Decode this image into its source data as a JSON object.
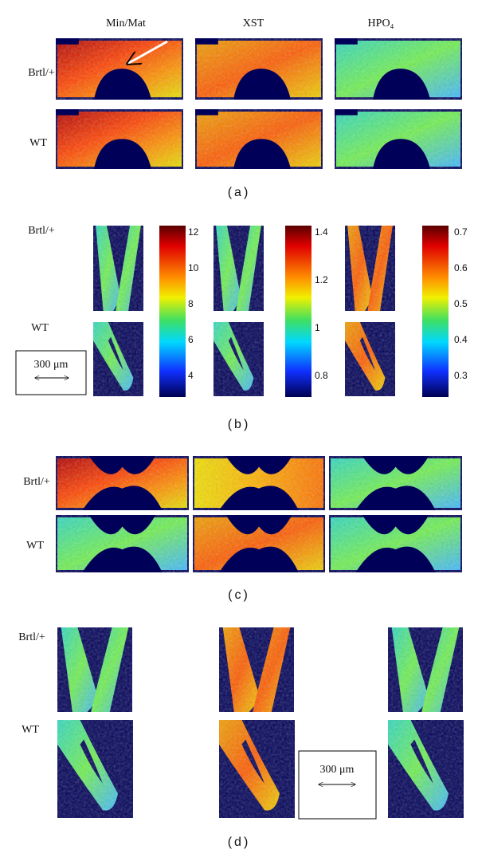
{
  "panel_a": {
    "column_headers": [
      "Min/Mat",
      "XST",
      "HPO₄"
    ],
    "row_labels": [
      "Brtl/+",
      "WT"
    ],
    "caption": "(a)"
  },
  "panel_b": {
    "row_labels": [
      "Brtl/+",
      "WT"
    ],
    "colorbars": [
      [
        "12",
        "10",
        "8",
        "6",
        "4"
      ],
      [
        "1.4",
        "1.2",
        "1",
        "0.8"
      ],
      [
        "0.7",
        "0.6",
        "0.5",
        "0.4",
        "0.3"
      ]
    ],
    "scale_bar": "300 μm",
    "caption": "(b)"
  },
  "panel_c": {
    "row_labels": [
      "Brtl/+",
      "WT"
    ],
    "caption": "(c)"
  },
  "panel_d": {
    "row_labels": [
      "Brtl/+",
      "WT"
    ],
    "scale_bar": "300 μm",
    "caption": "(d)"
  }
}
